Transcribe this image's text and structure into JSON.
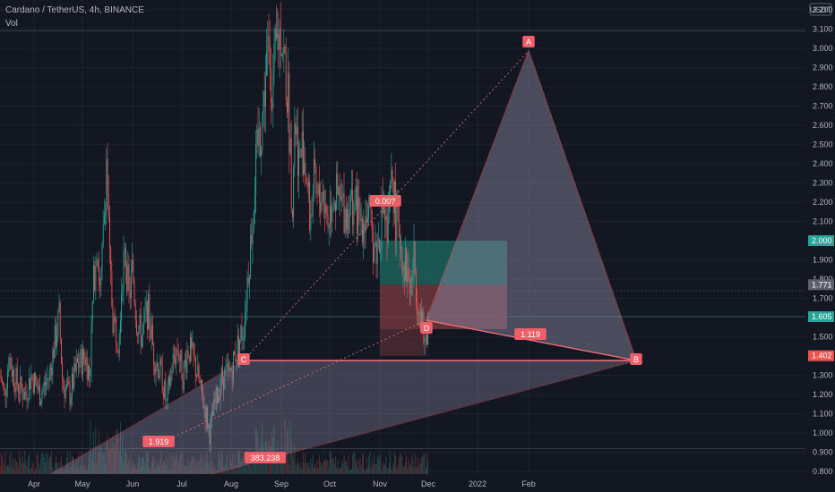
{
  "header": {
    "symbol_line": "Cardano / TetherUS, 4h, BINANCE",
    "volume_label": "Vol"
  },
  "currency": "USDT",
  "colors": {
    "background": "#131722",
    "grid": "#1e222d",
    "up": "#26a69a",
    "down": "#ef5350",
    "pattern_line": "#f0717a",
    "pattern_fill": "#8e8ea8",
    "target_zone": "#1f6d63",
    "stop_zone": "#7c3b42"
  },
  "chart_data": {
    "type": "candlestick",
    "interval": "4h",
    "ylim": [
      0.75,
      3.25
    ],
    "price_ticks": [
      "3.200",
      "3.100",
      "3.000",
      "2.900",
      "2.800",
      "2.700",
      "2.600",
      "2.500",
      "2.400",
      "2.300",
      "2.200",
      "2.100",
      "1.900",
      "1.800",
      "1.700",
      "1.500",
      "1.300",
      "1.200",
      "1.100",
      "1.000",
      "0.900",
      "0.800"
    ],
    "time_ticks": [
      "Apr",
      "May",
      "Jun",
      "Jul",
      "Aug",
      "Sep",
      "Oct",
      "Nov",
      "Dec",
      "2022",
      "Feb"
    ],
    "price_labels": [
      {
        "value": "2.000",
        "price": 2.0,
        "bg": "#26a69a"
      },
      {
        "value": "1.771",
        "price": 1.771,
        "bg": "#5d606b"
      },
      {
        "value": "1.605",
        "price": 1.605,
        "bg": "#26a69a"
      },
      {
        "value": "1.402",
        "price": 1.402,
        "bg": "#ef5350"
      }
    ],
    "pattern": {
      "points": [
        {
          "label": "A",
          "date": "Feb",
          "price": 3.08
        },
        {
          "label": "B",
          "date": "Feb+",
          "price": 1.402
        },
        {
          "label": "C",
          "date": "Aug",
          "price": 1.402
        },
        {
          "label": "D",
          "date": "Dec",
          "price": 1.55
        }
      ],
      "ratios": [
        "0.00?",
        "1.119",
        "1.919",
        "383.238"
      ]
    },
    "price_path": [
      [
        0,
        1.3
      ],
      [
        5,
        1.2
      ],
      [
        10,
        1.4
      ],
      [
        15,
        1.3
      ],
      [
        20,
        1.25
      ],
      [
        28,
        1.2
      ],
      [
        35,
        1.3
      ],
      [
        45,
        1.2
      ],
      [
        55,
        1.3
      ],
      [
        62,
        1.5
      ],
      [
        66,
        1.6
      ],
      [
        70,
        1.25
      ],
      [
        78,
        1.2
      ],
      [
        86,
        1.35
      ],
      [
        95,
        1.4
      ],
      [
        100,
        1.3
      ],
      [
        104,
        1.75
      ],
      [
        108,
        2.0
      ],
      [
        112,
        1.7
      ],
      [
        116,
        2.1
      ],
      [
        119,
        2.45
      ],
      [
        122,
        1.9
      ],
      [
        126,
        1.6
      ],
      [
        132,
        1.5
      ],
      [
        136,
        1.8
      ],
      [
        140,
        1.95
      ],
      [
        144,
        1.7
      ],
      [
        148,
        1.85
      ],
      [
        152,
        1.6
      ],
      [
        158,
        1.5
      ],
      [
        165,
        1.65
      ],
      [
        172,
        1.4
      ],
      [
        180,
        1.3
      ],
      [
        186,
        1.15
      ],
      [
        192,
        1.35
      ],
      [
        198,
        1.45
      ],
      [
        204,
        1.3
      ],
      [
        210,
        1.45
      ],
      [
        218,
        1.35
      ],
      [
        225,
        1.2
      ],
      [
        230,
        1.1
      ],
      [
        234,
        1.0
      ],
      [
        240,
        1.15
      ],
      [
        248,
        1.3
      ],
      [
        256,
        1.3
      ],
      [
        262,
        1.4
      ],
      [
        268,
        1.5
      ],
      [
        272,
        1.55
      ],
      [
        276,
        1.8
      ],
      [
        280,
        2.0
      ],
      [
        284,
        2.3
      ],
      [
        288,
        2.5
      ],
      [
        292,
        2.6
      ],
      [
        296,
        2.85
      ],
      [
        300,
        3.0
      ],
      [
        304,
        2.8
      ],
      [
        310,
        3.05
      ],
      [
        314,
        3.1
      ],
      [
        318,
        2.9
      ],
      [
        322,
        2.7
      ],
      [
        326,
        2.2
      ],
      [
        330,
        2.6
      ],
      [
        334,
        2.4
      ],
      [
        338,
        2.5
      ],
      [
        342,
        2.35
      ],
      [
        346,
        2.1
      ],
      [
        350,
        2.3
      ],
      [
        354,
        2.2
      ],
      [
        360,
        2.25
      ],
      [
        366,
        2.1
      ],
      [
        372,
        2.25
      ],
      [
        378,
        2.2
      ],
      [
        386,
        2.15
      ],
      [
        394,
        2.2
      ],
      [
        402,
        2.1
      ],
      [
        410,
        2.15
      ],
      [
        416,
        2.0
      ],
      [
        420,
        1.95
      ],
      [
        424,
        2.05
      ],
      [
        428,
        2.2
      ],
      [
        432,
        2.0
      ],
      [
        436,
        2.25
      ],
      [
        438,
        2.33
      ],
      [
        442,
        2.1
      ],
      [
        446,
        2.05
      ],
      [
        450,
        1.9
      ],
      [
        454,
        1.85
      ],
      [
        458,
        1.75
      ],
      [
        462,
        1.9
      ],
      [
        466,
        1.7
      ],
      [
        470,
        1.6
      ],
      [
        474,
        1.45
      ],
      [
        478,
        1.6
      ]
    ]
  }
}
